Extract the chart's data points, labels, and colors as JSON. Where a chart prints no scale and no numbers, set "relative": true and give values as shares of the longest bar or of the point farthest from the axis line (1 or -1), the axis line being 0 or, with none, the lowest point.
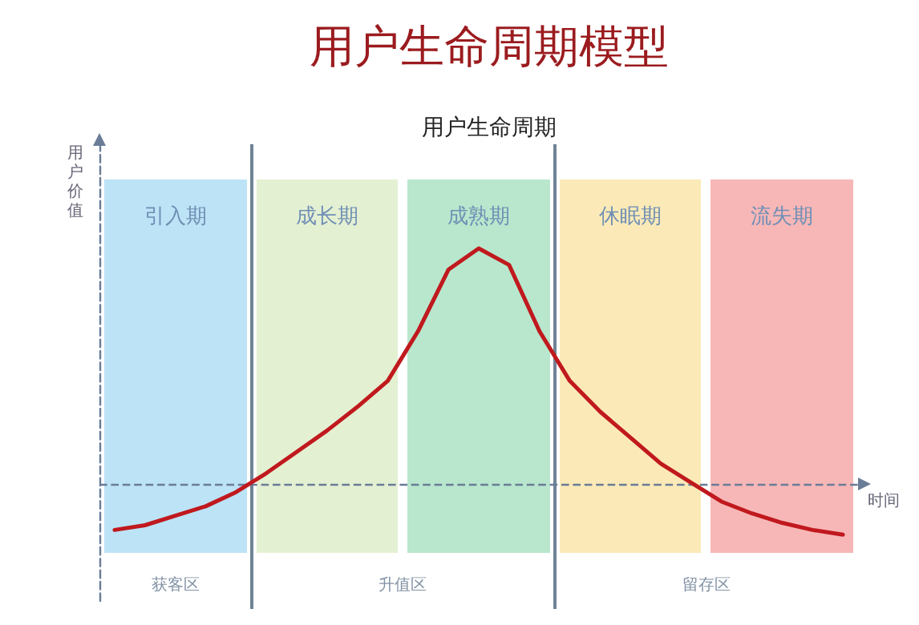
{
  "chart_data": {
    "type": "line",
    "title": "用户生命周期模型",
    "subtitle": "用户生命周期",
    "xlabel": "时间",
    "ylabel": "用户价值",
    "relative": true,
    "grid": false,
    "marker": "none",
    "line_style": "solid",
    "categories": [
      null,
      null,
      null,
      null,
      null,
      null,
      null,
      null,
      null,
      null,
      null,
      null,
      null,
      null,
      null,
      null,
      null,
      null,
      null,
      null,
      null,
      null,
      null,
      null,
      null
    ],
    "series": [
      {
        "color": "#c0191e",
        "values": [
          -0.19,
          -0.17,
          -0.13,
          -0.09,
          -0.03,
          0.05,
          0.14,
          0.23,
          0.33,
          0.44,
          0.65,
          0.91,
          1,
          0.93,
          0.65,
          0.44,
          0.31,
          0.2,
          0.09,
          0.01,
          -0.07,
          -0.12,
          -0.16,
          -0.19,
          -0.21
        ]
      }
    ],
    "ref_lines": [
      {
        "axis": "y",
        "value": 0,
        "color": "#6a7c96",
        "line_style": "dashed"
      }
    ],
    "annotations": [
      "引入期",
      "成长期",
      "成熟期",
      "休眠期",
      "流失期",
      "获客区",
      "升值区",
      "留存区"
    ]
  }
}
